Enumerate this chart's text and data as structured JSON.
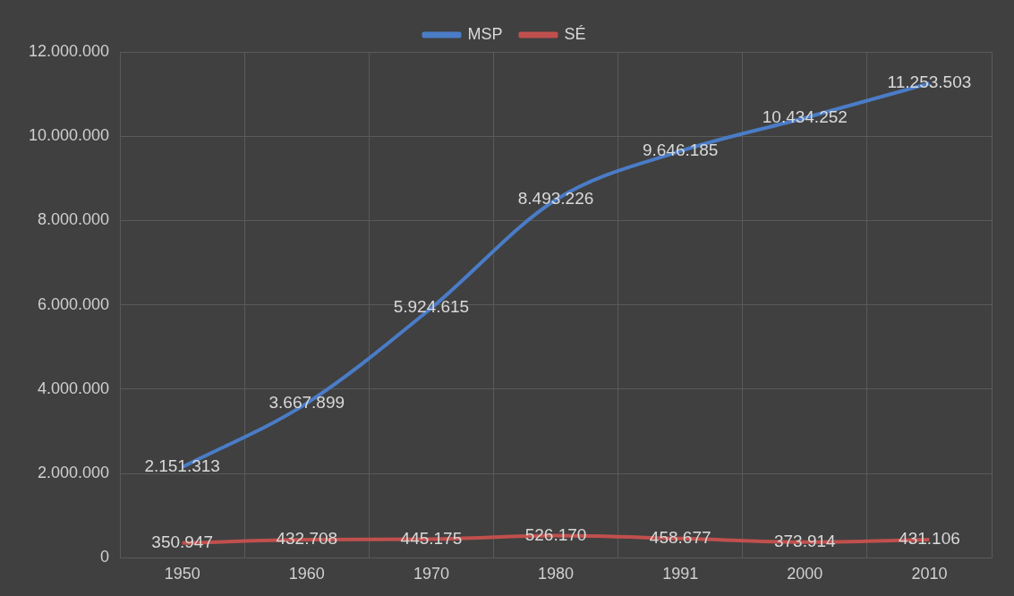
{
  "chart_data": {
    "type": "line",
    "categories": [
      "1950",
      "1960",
      "1970",
      "1980",
      "1991",
      "2000",
      "2010"
    ],
    "series": [
      {
        "name": "MSP",
        "color": "#4a7cc7",
        "values": [
          2151313,
          3667899,
          5924615,
          8493226,
          9646185,
          10434252,
          11253503
        ],
        "value_labels": [
          "2.151.313",
          "3.667.899",
          "5.924.615",
          "8.493.226",
          "9.646.185",
          "10.434.252",
          "11.253.503"
        ]
      },
      {
        "name": "SÉ",
        "color": "#c0504d",
        "values": [
          350947,
          432708,
          445175,
          526170,
          458677,
          373914,
          431106
        ],
        "value_labels": [
          "350.947",
          "432.708",
          "445.175",
          "526.170",
          "458.677",
          "373.914",
          "431.106"
        ]
      }
    ],
    "ylim": [
      0,
      12000000
    ],
    "yticks": [
      {
        "value": 0,
        "label": "0"
      },
      {
        "value": 2000000,
        "label": "2.000.000"
      },
      {
        "value": 4000000,
        "label": "4.000.000"
      },
      {
        "value": 6000000,
        "label": "6.000.000"
      },
      {
        "value": 8000000,
        "label": "8.000.000"
      },
      {
        "value": 10000000,
        "label": "10.000.000"
      },
      {
        "value": 12000000,
        "label": "12.000.000"
      }
    ],
    "grid": true,
    "legend": "top",
    "line_style": "solid"
  }
}
